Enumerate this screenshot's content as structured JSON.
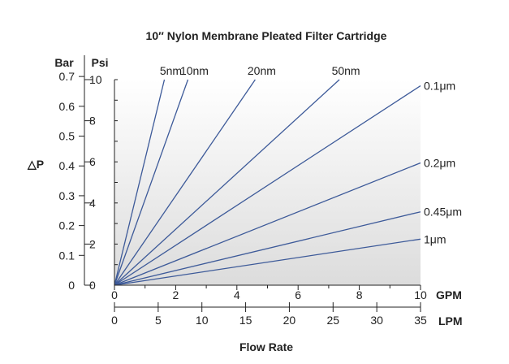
{
  "chart_data": {
    "type": "line",
    "title": "10″ Nylon Membrane Pleated Filter Cartridge",
    "xlabel": "Flow Rate",
    "ylabel": "△P",
    "x_units": {
      "primary": "GPM",
      "secondary": "LPM"
    },
    "y_units": {
      "bar": "Bar",
      "psi": "Psi"
    },
    "xlim_gpm": [
      0,
      10
    ],
    "ylim_psi": [
      0,
      10
    ],
    "x_ticks_gpm": [
      "0",
      "2",
      "4",
      "6",
      "8",
      "10"
    ],
    "x_ticks_lpm": [
      "0",
      "5",
      "10",
      "15",
      "20",
      "25",
      "30",
      "35"
    ],
    "y_ticks_psi": [
      "0",
      "2",
      "4",
      "6",
      "8",
      "10"
    ],
    "y_ticks_bar": [
      "0",
      "0.1",
      "0.2",
      "0.3",
      "0.4",
      "0.5",
      "0.6",
      "0.7"
    ],
    "grid": false,
    "series": [
      {
        "name": "5nm",
        "x": [
          0,
          1.63
        ],
        "y": [
          0,
          10.0
        ],
        "label_pos": "top"
      },
      {
        "name": "10nm",
        "x": [
          0,
          2.4
        ],
        "y": [
          0,
          10.0
        ],
        "label_pos": "top"
      },
      {
        "name": "20nm",
        "x": [
          0,
          4.6
        ],
        "y": [
          0,
          10.0
        ],
        "label_pos": "top"
      },
      {
        "name": "50nm",
        "x": [
          0,
          7.35
        ],
        "y": [
          0,
          10.0
        ],
        "label_pos": "top"
      },
      {
        "name": "0.1μm",
        "x": [
          0,
          10
        ],
        "y": [
          0,
          9.7
        ],
        "label_pos": "right"
      },
      {
        "name": "0.2μm",
        "x": [
          0,
          10
        ],
        "y": [
          0,
          5.95
        ],
        "label_pos": "right"
      },
      {
        "name": "0.45μm",
        "x": [
          0,
          10
        ],
        "y": [
          0,
          3.57
        ],
        "label_pos": "right"
      },
      {
        "name": "1μm",
        "x": [
          0,
          10
        ],
        "y": [
          0,
          2.24
        ],
        "label_pos": "right"
      }
    ],
    "line_color": "#3d5a99"
  }
}
